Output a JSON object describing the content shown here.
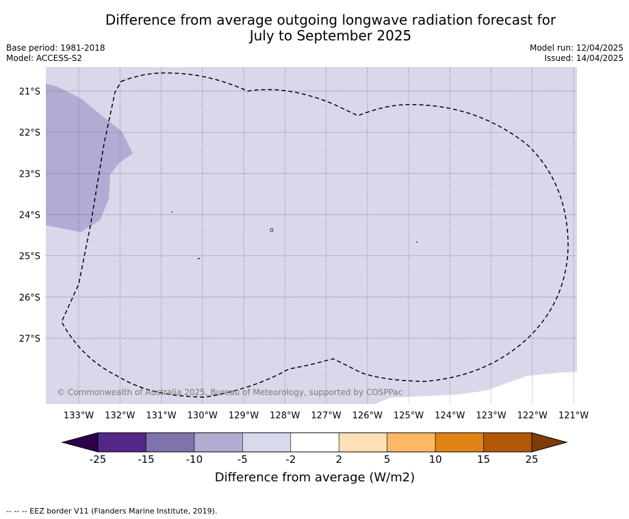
{
  "title": {
    "line1": "Difference from average outgoing longwave radiation forecast for",
    "line2": "July to September 2025"
  },
  "info_left": {
    "base_period": "Base period: 1981-2018",
    "model": "Model: ACCESS-S2"
  },
  "info_right": {
    "model_run": "Model run: 12/04/2025",
    "issued": "Issued: 14/04/2025"
  },
  "map": {
    "lat_labels": [
      "21°S",
      "22°S",
      "23°S",
      "24°S",
      "25°S",
      "26°S",
      "27°S"
    ],
    "lon_labels": [
      "133°W",
      "132°W",
      "131°W",
      "130°W",
      "129°W",
      "128°W",
      "127°W",
      "126°W",
      "125°W",
      "124°W",
      "123°W",
      "122°W",
      "121°W"
    ],
    "copyright": "© Commonwealth of Australia 2025, Bureau of Meteorology, supported by COSPPac",
    "colors": {
      "background_fill": "#d8d8ea",
      "anomaly_fill": "#b2abd3",
      "no_data": "#ffffff"
    }
  },
  "colorbar": {
    "label": "Difference from average (W/m2)",
    "ticks": [
      "-25",
      "-15",
      "-10",
      "-5",
      "-2",
      "2",
      "5",
      "10",
      "15",
      "25"
    ],
    "colors": [
      "#542788",
      "#8073ac",
      "#b2abd2",
      "#d8daeb",
      "#ffffff",
      "#fee0b6",
      "#fdb863",
      "#e08214",
      "#b35806"
    ],
    "extend_low": "#2d004b",
    "extend_high": "#7f3b08"
  },
  "footnote": "-- -- -- EEZ border V11 (Flanders Marine Institute, 2019)."
}
